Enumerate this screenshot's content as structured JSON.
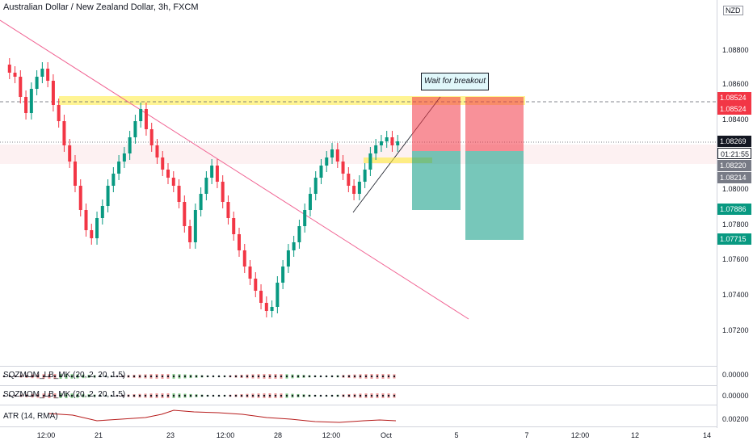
{
  "header": {
    "symbol_title": "Australian Dollar / New Zealand Dollar, 3h, FXCM",
    "currency": "NZD"
  },
  "annotation": {
    "note": "Wait for breakout"
  },
  "price_axis": {
    "ticks": [
      "1.08800",
      "1.08600",
      "1.08400",
      "1.08000",
      "1.07800",
      "1.07600",
      "1.07400",
      "1.07200"
    ],
    "tags": {
      "tp_short": "1.08524",
      "tp_long": "1.08524",
      "last_price": "1.08269",
      "countdown": "01:21:55",
      "entry_a": "1.08220",
      "entry_b": "1.08214",
      "stop_a": "1.07886",
      "stop_b": "1.07715"
    },
    "colors": {
      "red": "#f23645",
      "green": "#089981",
      "dark": "#131722",
      "grey": "#787b86"
    }
  },
  "time_axis": {
    "labels": [
      "12:00",
      "21",
      "23",
      "12:00",
      "28",
      "12:00",
      "Oct",
      "5",
      "7",
      "12:00",
      "12",
      "14"
    ]
  },
  "panes": {
    "squeeze_1": {
      "label": "SQZMOM_LB_MK (20, 2, 20, 1.5)",
      "value": "0.00000"
    },
    "squeeze_2": {
      "label": "SQZMOM_LB_MK (20, 2, 20, 1.5)",
      "value": "0.00000"
    },
    "atr": {
      "label": "ATR (14, RMA)",
      "value": "0.00200"
    }
  }
}
